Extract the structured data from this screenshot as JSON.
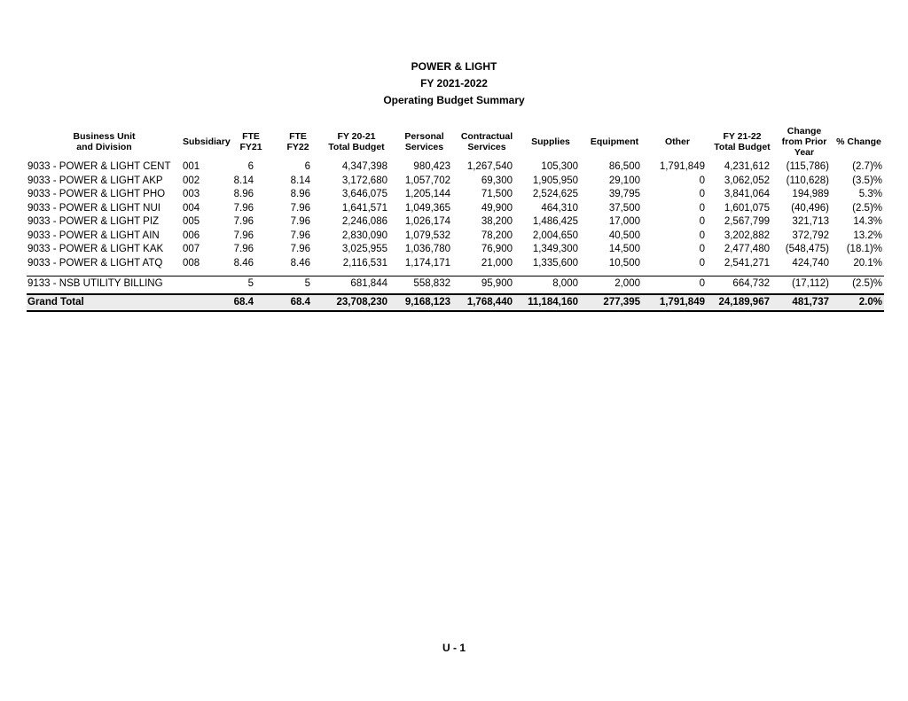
{
  "document": {
    "title": "POWER & LIGHT",
    "fiscal_year": "FY 2021-2022",
    "subtitle": "Operating Budget Summary",
    "page_number": "U - 1"
  },
  "table": {
    "columns": [
      "Business Unit\nand Division",
      "Subsidiary",
      "FTE\nFY21",
      "FTE\nFY22",
      "FY 20-21\nTotal Budget",
      "Personal\nServices",
      "Contractual\nServices",
      "Supplies",
      "Equipment",
      "Other",
      "FY 21-22\nTotal Budget",
      "Change\nfrom Prior\nYear",
      "% Change"
    ],
    "rows": [
      [
        "9033 - POWER & LIGHT CENT",
        "001",
        "6",
        "6",
        "4,347,398",
        "980,423",
        "1,267,540",
        "105,300",
        "86,500",
        "1,791,849",
        "4,231,612",
        "(115,786)",
        "(2.7)%"
      ],
      [
        "9033 - POWER & LIGHT AKP",
        "002",
        "8.14",
        "8.14",
        "3,172,680",
        "1,057,702",
        "69,300",
        "1,905,950",
        "29,100",
        "0",
        "3,062,052",
        "(110,628)",
        "(3.5)%"
      ],
      [
        "9033 - POWER & LIGHT PHO",
        "003",
        "8.96",
        "8.96",
        "3,646,075",
        "1,205,144",
        "71,500",
        "2,524,625",
        "39,795",
        "0",
        "3,841,064",
        "194,989",
        "5.3%"
      ],
      [
        "9033 - POWER & LIGHT NUI",
        "004",
        "7.96",
        "7.96",
        "1,641,571",
        "1,049,365",
        "49,900",
        "464,310",
        "37,500",
        "0",
        "1,601,075",
        "(40,496)",
        "(2.5)%"
      ],
      [
        "9033 - POWER & LIGHT PIZ",
        "005",
        "7.96",
        "7.96",
        "2,246,086",
        "1,026,174",
        "38,200",
        "1,486,425",
        "17,000",
        "0",
        "2,567,799",
        "321,713",
        "14.3%"
      ],
      [
        "9033 - POWER & LIGHT AIN",
        "006",
        "7.96",
        "7.96",
        "2,830,090",
        "1,079,532",
        "78,200",
        "2,004,650",
        "40,500",
        "0",
        "3,202,882",
        "372,792",
        "13.2%"
      ],
      [
        "9033 - POWER & LIGHT KAK",
        "007",
        "7.96",
        "7.96",
        "3,025,955",
        "1,036,780",
        "76,900",
        "1,349,300",
        "14,500",
        "0",
        "2,477,480",
        "(548,475)",
        "(18.1)%"
      ],
      [
        "9033 - POWER & LIGHT ATQ",
        "008",
        "8.46",
        "8.46",
        "2,116,531",
        "1,174,171",
        "21,000",
        "1,335,600",
        "10,500",
        "0",
        "2,541,271",
        "424,740",
        "20.1%"
      ],
      [
        "9133 - NSB UTILITY BILLING",
        "",
        "5",
        "5",
        "681,844",
        "558,832",
        "95,900",
        "8,000",
        "2,000",
        "0",
        "664,732",
        "(17,112)",
        "(2.5)%"
      ]
    ],
    "grand_total": [
      "Grand Total",
      "",
      "68.4",
      "68.4",
      "23,708,230",
      "9,168,123",
      "1,768,440",
      "11,184,160",
      "277,395",
      "1,791,849",
      "24,189,967",
      "481,737",
      "2.0%"
    ]
  }
}
